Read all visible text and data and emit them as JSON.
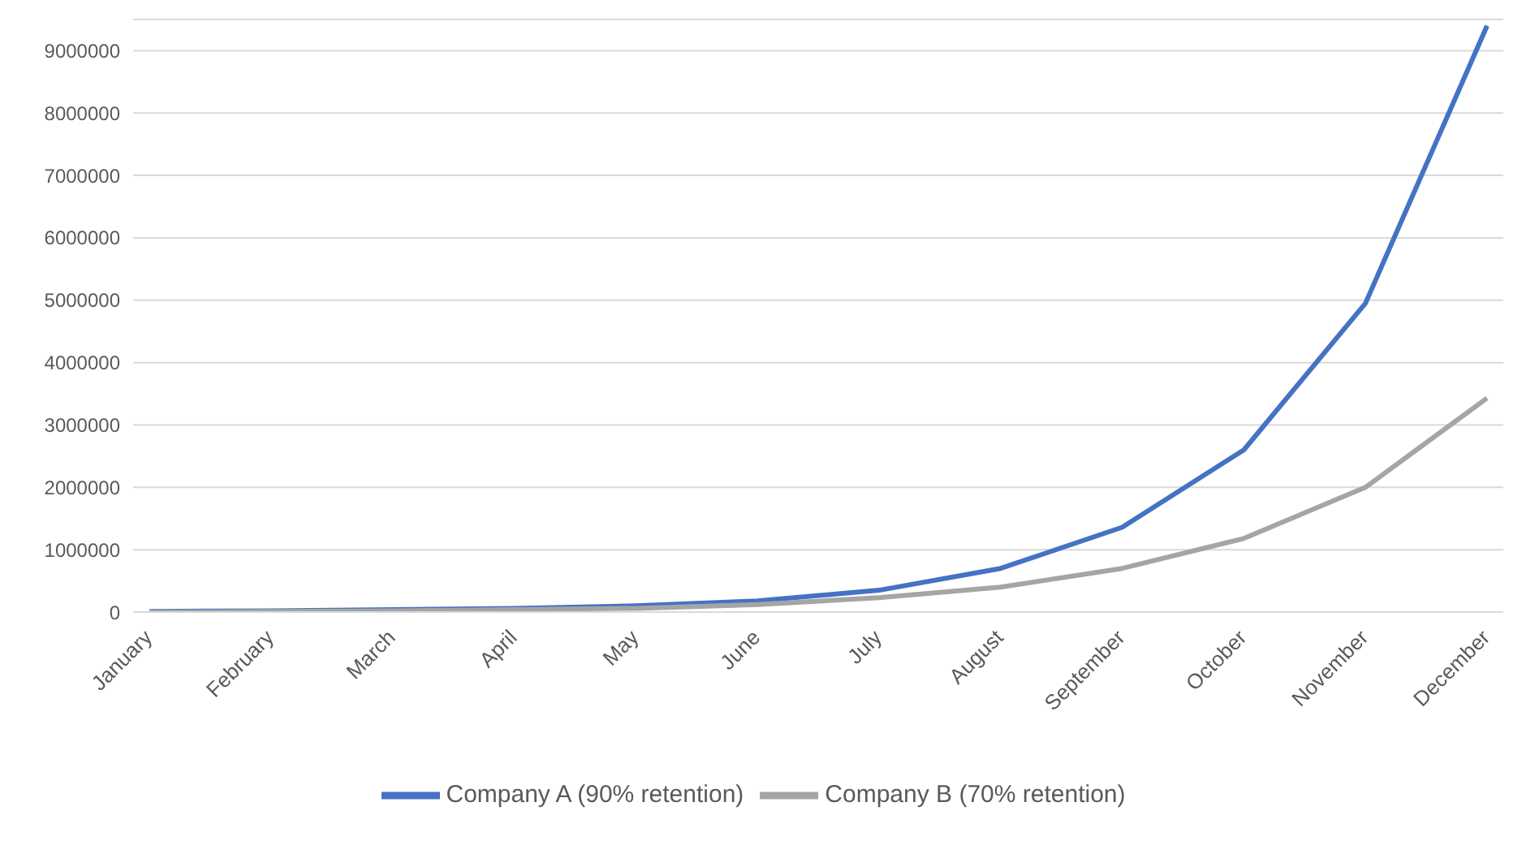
{
  "chart_data": {
    "type": "line",
    "categories": [
      "January",
      "February",
      "March",
      "April",
      "May",
      "June",
      "July",
      "August",
      "September",
      "October",
      "November",
      "December"
    ],
    "series": [
      {
        "name": "Company A (90% retention)",
        "color": "#4472c4",
        "values": [
          10000,
          20000,
          40000,
          60000,
          100000,
          180000,
          350000,
          700000,
          1360000,
          2600000,
          4950000,
          9400000
        ]
      },
      {
        "name": "Company B (70% retention)",
        "color": "#a5a5a5",
        "values": [
          0,
          10000,
          20000,
          40000,
          60000,
          120000,
          230000,
          400000,
          700000,
          1180000,
          2000000,
          3430000
        ]
      }
    ],
    "ylim": [
      0,
      9500000
    ],
    "yticks": [
      0,
      1000000,
      2000000,
      3000000,
      4000000,
      5000000,
      6000000,
      7000000,
      8000000,
      9000000
    ],
    "grid": "y",
    "legend": "bottom",
    "marker": "none",
    "line_style": "solid"
  }
}
